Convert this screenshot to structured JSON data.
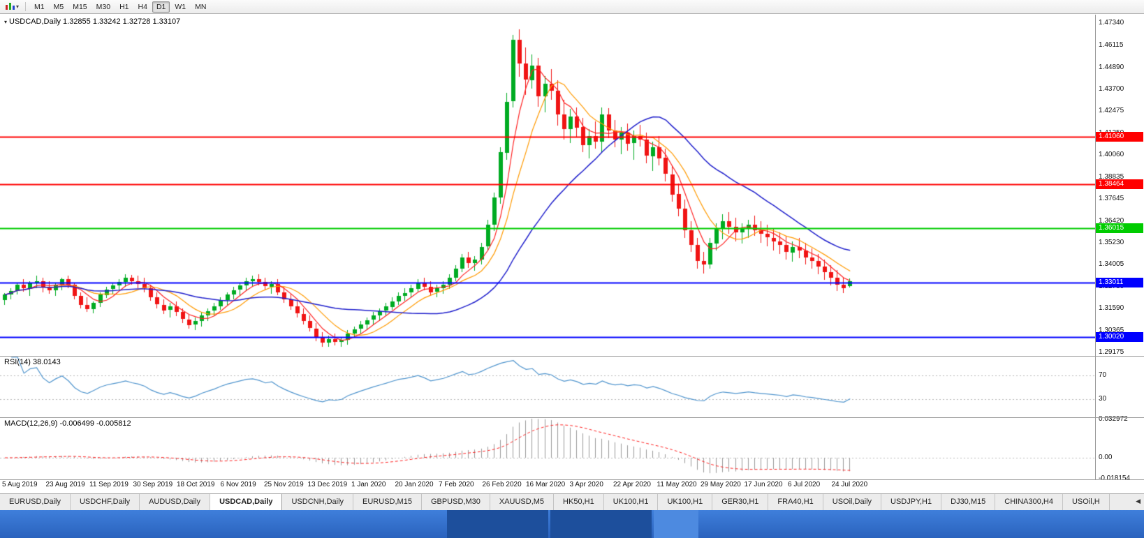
{
  "toolbar": {
    "timeframes": [
      "M1",
      "M5",
      "M15",
      "M30",
      "H1",
      "H4",
      "D1",
      "W1",
      "MN"
    ],
    "active_timeframe": "D1",
    "dropdown_glyph": "▾"
  },
  "chart": {
    "title_text": "USDCAD,Daily 1.32855 1.33242 1.32728 1.33107",
    "dropdown_glyph": "▾"
  },
  "rsi": {
    "label": "RSI(14) 38.0143"
  },
  "macd": {
    "label": "MACD(12,26,9) -0.006499 -0.005812"
  },
  "tabs": {
    "items": [
      "EURUSD,Daily",
      "USDCHF,Daily",
      "AUDUSD,Daily",
      "USDCAD,Daily",
      "USDCNH,Daily",
      "EURUSD,M15",
      "GBPUSD,M30",
      "XAUUSD,M5",
      "HK50,H1",
      "UK100,H1",
      "UK100,H1",
      "GER30,H1",
      "FRA40,H1",
      "USOil,Daily",
      "USDJPY,H1",
      "DJ30,M15",
      "CHINA300,H4",
      "USOil,H"
    ],
    "active_index": 3,
    "scroll_left_icon": "◀"
  },
  "colors": {
    "candle_up": "#00ab22",
    "candle_down": "#f01414",
    "rsi_line": "#4f94cd",
    "macd_hist": "#9a9a9a",
    "macd_signal": "#ff2020",
    "level_dotted": "#b8b8b8",
    "hline_red": "#ff0000",
    "hline_green": "#00cc00",
    "hline_blue": "#0000ff"
  },
  "chart_data": {
    "type": "candlestick",
    "symbol": "USDCAD",
    "timeframe": "Daily",
    "ohlc": {
      "open": 1.32855,
      "high": 1.33242,
      "low": 1.32728,
      "close": 1.33107
    },
    "ylim": [
      1.2898,
      1.478
    ],
    "y_ticks": [
      "1.47340",
      "1.46115",
      "1.44890",
      "1.43700",
      "1.42475",
      "1.41250",
      "1.40060",
      "1.38835",
      "1.37645",
      "1.36420",
      "1.35230",
      "1.34005",
      "1.32780",
      "1.31590",
      "1.30365",
      "1.29175"
    ],
    "x_labels": [
      "5 Aug 2019",
      "23 Aug 2019",
      "11 Sep 2019",
      "30 Sep 2019",
      "18 Oct 2019",
      "6 Nov 2019",
      "25 Nov 2019",
      "13 Dec 2019",
      "1 Jan 2020",
      "20 Jan 2020",
      "7 Feb 2020",
      "26 Feb 2020",
      "16 Mar 2020",
      "3 Apr 2020",
      "22 Apr 2020",
      "11 May 2020",
      "29 May 2020",
      "17 Jun 2020",
      "6 Jul 2020",
      "24 Jul 2020"
    ],
    "hlines": [
      {
        "label": "1.41060",
        "value": 1.4106,
        "color": "#ff0000"
      },
      {
        "label": "1.38464",
        "value": 1.38464,
        "color": "#ff0000"
      },
      {
        "label": "1.36015",
        "value": 1.36015,
        "color": "#00cc00"
      },
      {
        "label": "1.33011",
        "value": 1.33011,
        "color": "#0000ff"
      },
      {
        "label": "1.30020",
        "value": 1.3002,
        "color": "#0000ff"
      }
    ],
    "candles": [
      [
        1.3205,
        1.3245,
        1.318,
        1.3235
      ],
      [
        1.3235,
        1.327,
        1.321,
        1.3255
      ],
      [
        1.3255,
        1.33,
        1.324,
        1.329
      ],
      [
        1.329,
        1.332,
        1.325,
        1.327
      ],
      [
        1.327,
        1.331,
        1.323,
        1.33
      ],
      [
        1.33,
        1.334,
        1.327,
        1.331
      ],
      [
        1.331,
        1.333,
        1.325,
        1.328
      ],
      [
        1.328,
        1.331,
        1.324,
        1.326
      ],
      [
        1.326,
        1.33,
        1.323,
        1.329
      ],
      [
        1.329,
        1.333,
        1.326,
        1.332
      ],
      [
        1.332,
        1.334,
        1.327,
        1.329
      ],
      [
        1.329,
        1.33,
        1.321,
        1.323
      ],
      [
        1.323,
        1.325,
        1.316,
        1.318
      ],
      [
        1.318,
        1.322,
        1.314,
        1.3155
      ],
      [
        1.3155,
        1.32,
        1.3135,
        1.319
      ],
      [
        1.319,
        1.325,
        1.317,
        1.3235
      ],
      [
        1.3235,
        1.328,
        1.322,
        1.3265
      ],
      [
        1.3265,
        1.33,
        1.324,
        1.3285
      ],
      [
        1.3285,
        1.332,
        1.326,
        1.3305
      ],
      [
        1.3305,
        1.335,
        1.328,
        1.333
      ],
      [
        1.333,
        1.3345,
        1.329,
        1.331
      ],
      [
        1.331,
        1.334,
        1.327,
        1.3295
      ],
      [
        1.3295,
        1.333,
        1.325,
        1.327
      ],
      [
        1.327,
        1.329,
        1.32,
        1.322
      ],
      [
        1.322,
        1.325,
        1.316,
        1.318
      ],
      [
        1.318,
        1.321,
        1.313,
        1.315
      ],
      [
        1.315,
        1.319,
        1.311,
        1.317
      ],
      [
        1.317,
        1.32,
        1.312,
        1.314
      ],
      [
        1.314,
        1.316,
        1.308,
        1.31
      ],
      [
        1.31,
        1.313,
        1.305,
        1.307
      ],
      [
        1.307,
        1.311,
        1.304,
        1.309
      ],
      [
        1.309,
        1.314,
        1.306,
        1.312
      ],
      [
        1.312,
        1.316,
        1.309,
        1.3145
      ],
      [
        1.3145,
        1.319,
        1.312,
        1.317
      ],
      [
        1.317,
        1.322,
        1.315,
        1.3205
      ],
      [
        1.3205,
        1.325,
        1.318,
        1.3235
      ],
      [
        1.3235,
        1.328,
        1.321,
        1.326
      ],
      [
        1.326,
        1.33,
        1.323,
        1.3285
      ],
      [
        1.3285,
        1.333,
        1.326,
        1.331
      ],
      [
        1.331,
        1.334,
        1.328,
        1.332
      ],
      [
        1.332,
        1.335,
        1.329,
        1.3305
      ],
      [
        1.3305,
        1.333,
        1.326,
        1.328
      ],
      [
        1.328,
        1.331,
        1.324,
        1.3295
      ],
      [
        1.3295,
        1.332,
        1.323,
        1.325
      ],
      [
        1.325,
        1.328,
        1.319,
        1.321
      ],
      [
        1.321,
        1.324,
        1.315,
        1.317
      ],
      [
        1.317,
        1.32,
        1.311,
        1.313
      ],
      [
        1.313,
        1.316,
        1.307,
        1.309
      ],
      [
        1.309,
        1.312,
        1.303,
        1.305
      ],
      [
        1.305,
        1.308,
        1.298,
        1.3
      ],
      [
        1.3,
        1.303,
        1.295,
        1.297
      ],
      [
        1.297,
        1.301,
        1.295,
        1.299
      ],
      [
        1.299,
        1.302,
        1.2955,
        1.2975
      ],
      [
        1.2975,
        1.3,
        1.2945,
        1.2985
      ],
      [
        1.2985,
        1.304,
        1.296,
        1.302
      ],
      [
        1.302,
        1.306,
        1.3,
        1.3045
      ],
      [
        1.3045,
        1.309,
        1.302,
        1.307
      ],
      [
        1.307,
        1.311,
        1.304,
        1.3095
      ],
      [
        1.3095,
        1.314,
        1.307,
        1.312
      ],
      [
        1.312,
        1.316,
        1.309,
        1.3145
      ],
      [
        1.3145,
        1.319,
        1.312,
        1.317
      ],
      [
        1.317,
        1.322,
        1.315,
        1.32
      ],
      [
        1.32,
        1.325,
        1.318,
        1.323
      ],
      [
        1.323,
        1.327,
        1.32,
        1.3245
      ],
      [
        1.3245,
        1.329,
        1.322,
        1.327
      ],
      [
        1.327,
        1.332,
        1.325,
        1.33
      ],
      [
        1.33,
        1.333,
        1.326,
        1.328
      ],
      [
        1.328,
        1.331,
        1.323,
        1.325
      ],
      [
        1.325,
        1.329,
        1.322,
        1.327
      ],
      [
        1.327,
        1.331,
        1.324,
        1.329
      ],
      [
        1.329,
        1.335,
        1.327,
        1.333
      ],
      [
        1.333,
        1.34,
        1.331,
        1.338
      ],
      [
        1.338,
        1.346,
        1.336,
        1.344
      ],
      [
        1.344,
        1.347,
        1.338,
        1.341
      ],
      [
        1.341,
        1.345,
        1.337,
        1.343
      ],
      [
        1.343,
        1.352,
        1.34,
        1.35
      ],
      [
        1.35,
        1.365,
        1.348,
        1.362
      ],
      [
        1.362,
        1.38,
        1.359,
        1.377
      ],
      [
        1.377,
        1.405,
        1.374,
        1.402
      ],
      [
        1.402,
        1.435,
        1.398,
        1.43
      ],
      [
        1.43,
        1.467,
        1.427,
        1.464
      ],
      [
        1.464,
        1.47,
        1.444,
        1.451
      ],
      [
        1.451,
        1.46,
        1.434,
        1.442
      ],
      [
        1.442,
        1.456,
        1.437,
        1.45
      ],
      [
        1.45,
        1.454,
        1.427,
        1.433
      ],
      [
        1.433,
        1.444,
        1.424,
        1.44
      ],
      [
        1.44,
        1.448,
        1.431,
        1.436
      ],
      [
        1.436,
        1.442,
        1.417,
        1.423
      ],
      [
        1.423,
        1.431,
        1.409,
        1.415
      ],
      [
        1.415,
        1.426,
        1.407,
        1.422
      ],
      [
        1.422,
        1.427,
        1.411,
        1.416
      ],
      [
        1.416,
        1.421,
        1.402,
        1.406
      ],
      [
        1.406,
        1.415,
        1.399,
        1.411
      ],
      [
        1.411,
        1.419,
        1.404,
        1.408
      ],
      [
        1.408,
        1.427,
        1.402,
        1.423
      ],
      [
        1.423,
        1.4265,
        1.41,
        1.414
      ],
      [
        1.414,
        1.42,
        1.405,
        1.409
      ],
      [
        1.409,
        1.416,
        1.401,
        1.413
      ],
      [
        1.413,
        1.418,
        1.403,
        1.407
      ],
      [
        1.407,
        1.414,
        1.398,
        1.411
      ],
      [
        1.411,
        1.417,
        1.405,
        1.409
      ],
      [
        1.409,
        1.413,
        1.396,
        1.4
      ],
      [
        1.4,
        1.408,
        1.392,
        1.405
      ],
      [
        1.405,
        1.411,
        1.395,
        1.399
      ],
      [
        1.399,
        1.404,
        1.386,
        1.39
      ],
      [
        1.39,
        1.395,
        1.375,
        1.379
      ],
      [
        1.379,
        1.385,
        1.367,
        1.371
      ],
      [
        1.371,
        1.376,
        1.355,
        1.359
      ],
      [
        1.359,
        1.364,
        1.347,
        1.351
      ],
      [
        1.351,
        1.355,
        1.338,
        1.342
      ],
      [
        1.342,
        1.347,
        1.335,
        1.34
      ],
      [
        1.34,
        1.355,
        1.338,
        1.352
      ],
      [
        1.352,
        1.363,
        1.348,
        1.36
      ],
      [
        1.36,
        1.368,
        1.354,
        1.364
      ],
      [
        1.364,
        1.369,
        1.357,
        1.361
      ],
      [
        1.361,
        1.366,
        1.353,
        1.358
      ],
      [
        1.358,
        1.363,
        1.352,
        1.36
      ],
      [
        1.36,
        1.365,
        1.355,
        1.362
      ],
      [
        1.362,
        1.367,
        1.356,
        1.359
      ],
      [
        1.359,
        1.364,
        1.352,
        1.357
      ],
      [
        1.357,
        1.362,
        1.35,
        1.355
      ],
      [
        1.355,
        1.36,
        1.348,
        1.353
      ],
      [
        1.353,
        1.358,
        1.346,
        1.351
      ],
      [
        1.351,
        1.356,
        1.343,
        1.347
      ],
      [
        1.347,
        1.353,
        1.342,
        1.35
      ],
      [
        1.35,
        1.355,
        1.344,
        1.348
      ],
      [
        1.348,
        1.352,
        1.34,
        1.344
      ],
      [
        1.344,
        1.349,
        1.338,
        1.342
      ],
      [
        1.342,
        1.346,
        1.335,
        1.339
      ],
      [
        1.339,
        1.343,
        1.332,
        1.336
      ],
      [
        1.336,
        1.34,
        1.329,
        1.333
      ],
      [
        1.333,
        1.337,
        1.3255,
        1.329
      ],
      [
        1.329,
        1.333,
        1.3245,
        1.327
      ],
      [
        1.32855,
        1.33242,
        1.32728,
        1.33107
      ]
    ],
    "indicators": {
      "sma_fast": {
        "period": 5,
        "color": "#ff2020"
      },
      "sma_mid": {
        "period": 9,
        "color": "#ff9a00"
      },
      "sma_slow": {
        "period": 25,
        "color": "#2020cc"
      },
      "rsi": {
        "period": 14,
        "value": 38.0143,
        "levels": [
          70,
          30
        ],
        "color": "#4f94cd"
      },
      "macd": {
        "fast": 12,
        "slow": 26,
        "signal_period": 9,
        "value": -0.006499,
        "signal_value": -0.005812,
        "range": [
          -0.0185,
          0.0335
        ],
        "ticks": [
          {
            "label": "0.032972",
            "value": 0.032972
          },
          {
            "label": "0.00",
            "value": 0
          },
          {
            "label": "-0.018154",
            "value": -0.018154
          }
        ]
      }
    }
  }
}
